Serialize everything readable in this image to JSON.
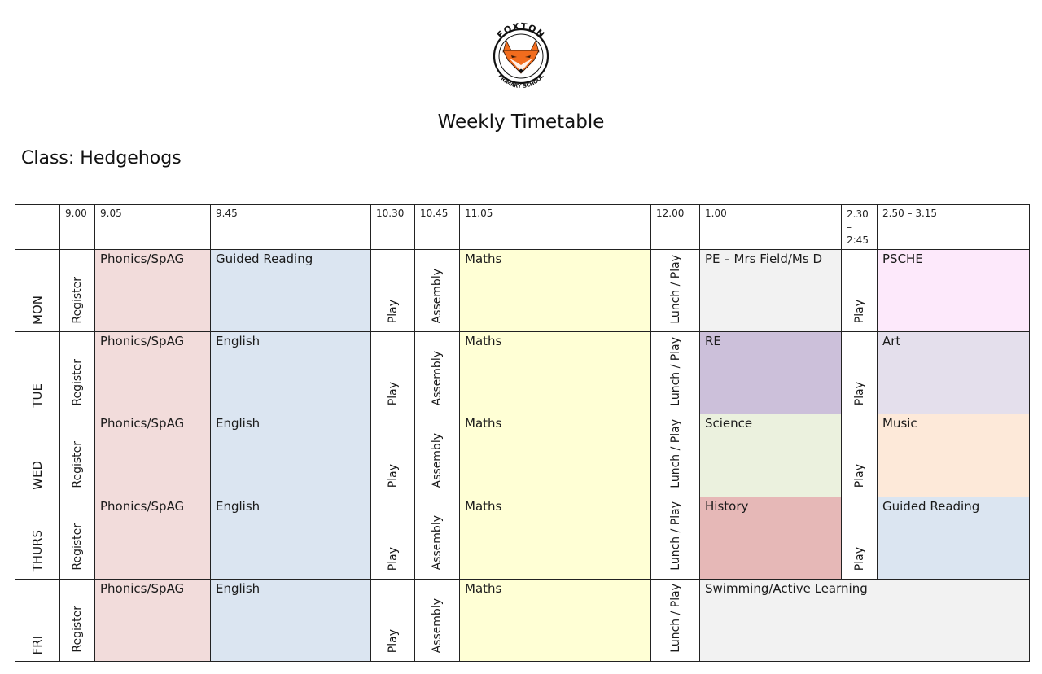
{
  "logo": {
    "top_text": "FOXTON",
    "bottom_text": "PRIMARY SCHOOL",
    "colors": {
      "fox_orange": "#f26c1d",
      "fox_dark": "#3a1a08",
      "ring": "#111111"
    }
  },
  "title": "Weekly Timetable",
  "class_line": "Class: Hedgehogs",
  "times": {
    "register": "9.00",
    "phonics": "9.05",
    "lesson2": "9.45",
    "play1": "10.30",
    "assembly": "10.45",
    "maths": "11.05",
    "lunch": "12.00",
    "afternoon": "1.00",
    "play2": "2.30 – 2:45",
    "last": "2.50 – 3.15"
  },
  "days": [
    {
      "name": "MON",
      "register": "Register",
      "phonics": "Phonics/SpAG",
      "lesson2": "Guided Reading",
      "play1": "Play",
      "assembly": "Assembly",
      "maths": "Maths",
      "lunch": "Lunch / Play",
      "afternoon": "PE – Mrs Field/Ms D",
      "play2": "Play",
      "last": "PSCHE"
    },
    {
      "name": "TUE",
      "register": "Register",
      "phonics": "Phonics/SpAG",
      "lesson2": "English",
      "play1": "Play",
      "assembly": "Assembly",
      "maths": "Maths",
      "lunch": "Lunch / Play",
      "afternoon": "RE",
      "play2": "Play",
      "last": "Art"
    },
    {
      "name": "WED",
      "register": "Register",
      "phonics": "Phonics/SpAG",
      "lesson2": "English",
      "play1": "Play",
      "assembly": "Assembly",
      "maths": "Maths",
      "lunch": "Lunch / Play",
      "afternoon": "Science",
      "play2": "Play",
      "last": "Music"
    },
    {
      "name": "THURS",
      "register": "Register",
      "phonics": "Phonics/SpAG",
      "lesson2": "English",
      "play1": "Play",
      "assembly": "Assembly",
      "maths": "Maths",
      "lunch": "Lunch / Play",
      "afternoon": "History",
      "play2": "Play",
      "last": "Guided Reading"
    },
    {
      "name": "FRI",
      "register": "Register",
      "phonics": "Phonics/SpAG",
      "lesson2": "English",
      "play1": "Play",
      "assembly": "Assembly",
      "maths": "Maths",
      "lunch": "Lunch / Play",
      "afternoon": "Swimming/Active Learning"
    }
  ],
  "colors": {
    "phonics": "#f2dcdb",
    "english": "#dbe5f1",
    "maths": "#ffffd5",
    "pe": "#f2f2f2",
    "psche": "#fde9fb",
    "re": "#ccc0da",
    "art": "#e4dfec",
    "science": "#ebf1de",
    "music": "#fde9d9",
    "history": "#e6b8b7",
    "swimming": "#f2f2f2"
  }
}
